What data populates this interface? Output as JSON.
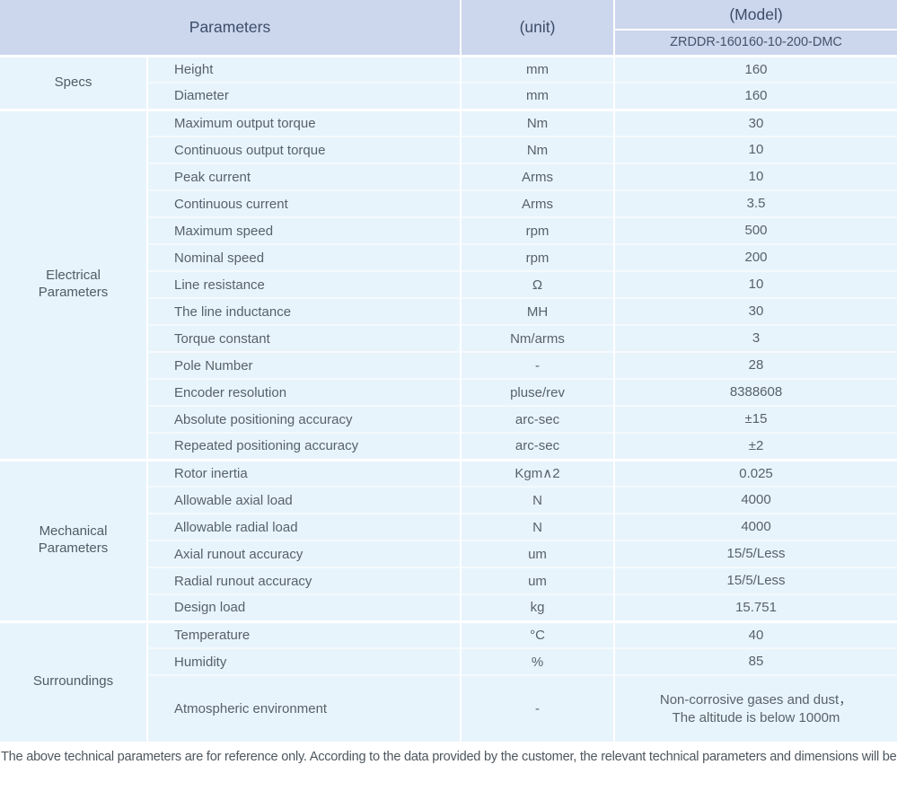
{
  "header": {
    "parameters_label": "Parameters",
    "unit_label": "(unit)",
    "model_label": "(Model)",
    "model_value": "ZRDDR-160160-10-200-DMC"
  },
  "sections": [
    {
      "group": "Specs",
      "rows": [
        {
          "param": "Height",
          "unit": "mm",
          "value": "160"
        },
        {
          "param": "Diameter",
          "unit": "mm",
          "value": "160"
        }
      ]
    },
    {
      "group": "Electrical\nParameters",
      "rows": [
        {
          "param": "Maximum output torque",
          "unit": "Nm",
          "value": "30"
        },
        {
          "param": "Continuous output torque",
          "unit": "Nm",
          "value": "10"
        },
        {
          "param": "Peak current",
          "unit": "Arms",
          "value": "10"
        },
        {
          "param": "Continuous current",
          "unit": "Arms",
          "value": "3.5"
        },
        {
          "param": "Maximum speed",
          "unit": "rpm",
          "value": "500"
        },
        {
          "param": "Nominal speed",
          "unit": "rpm",
          "value": "200"
        },
        {
          "param": "Line resistance",
          "unit": "Ω",
          "value": "10"
        },
        {
          "param": "The line inductance",
          "unit": "MH",
          "value": "30"
        },
        {
          "param": "Torque constant",
          "unit": "Nm/arms",
          "value": "3"
        },
        {
          "param": "Pole Number",
          "unit": "-",
          "value": "28"
        },
        {
          "param": "Encoder resolution",
          "unit": "pluse/rev",
          "value": "8388608"
        },
        {
          "param": "Absolute positioning accuracy",
          "unit": "arc-sec",
          "value": "±15"
        },
        {
          "param": "Repeated positioning accuracy",
          "unit": "arc-sec",
          "value": "±2"
        }
      ]
    },
    {
      "group": "Mechanical\nParameters",
      "rows": [
        {
          "param": "Rotor inertia",
          "unit": "Kgm∧2",
          "value": "0.025"
        },
        {
          "param": "Allowable axial load",
          "unit": "N",
          "value": "4000"
        },
        {
          "param": "Allowable radial load",
          "unit": "N",
          "value": "4000"
        },
        {
          "param": "Axial runout accuracy",
          "unit": "um",
          "value": "15/5/Less"
        },
        {
          "param": "Radial runout accuracy",
          "unit": "um",
          "value": "15/5/Less"
        },
        {
          "param": "Design load",
          "unit": "kg",
          "value": "15.751"
        }
      ]
    },
    {
      "group": "Surroundings",
      "rows": [
        {
          "param": "Temperature",
          "unit": "°C",
          "value": "40"
        },
        {
          "param": "Humidity",
          "unit": "%",
          "value": "85"
        },
        {
          "param": "Atmospheric environment",
          "unit": "-",
          "value": "Non-corrosive gases and dust，\nThe altitude is below 1000m"
        }
      ]
    }
  ],
  "footer": {
    "note": "The above technical parameters are for reference only. According to the data provided by the customer, the relevant technical parameters and dimensions will be issued."
  },
  "colors": {
    "header_bg": "#ccd6ed",
    "row_bg": "#e8f4fc",
    "header_text": "#3d4d68",
    "body_text": "#57616b"
  }
}
